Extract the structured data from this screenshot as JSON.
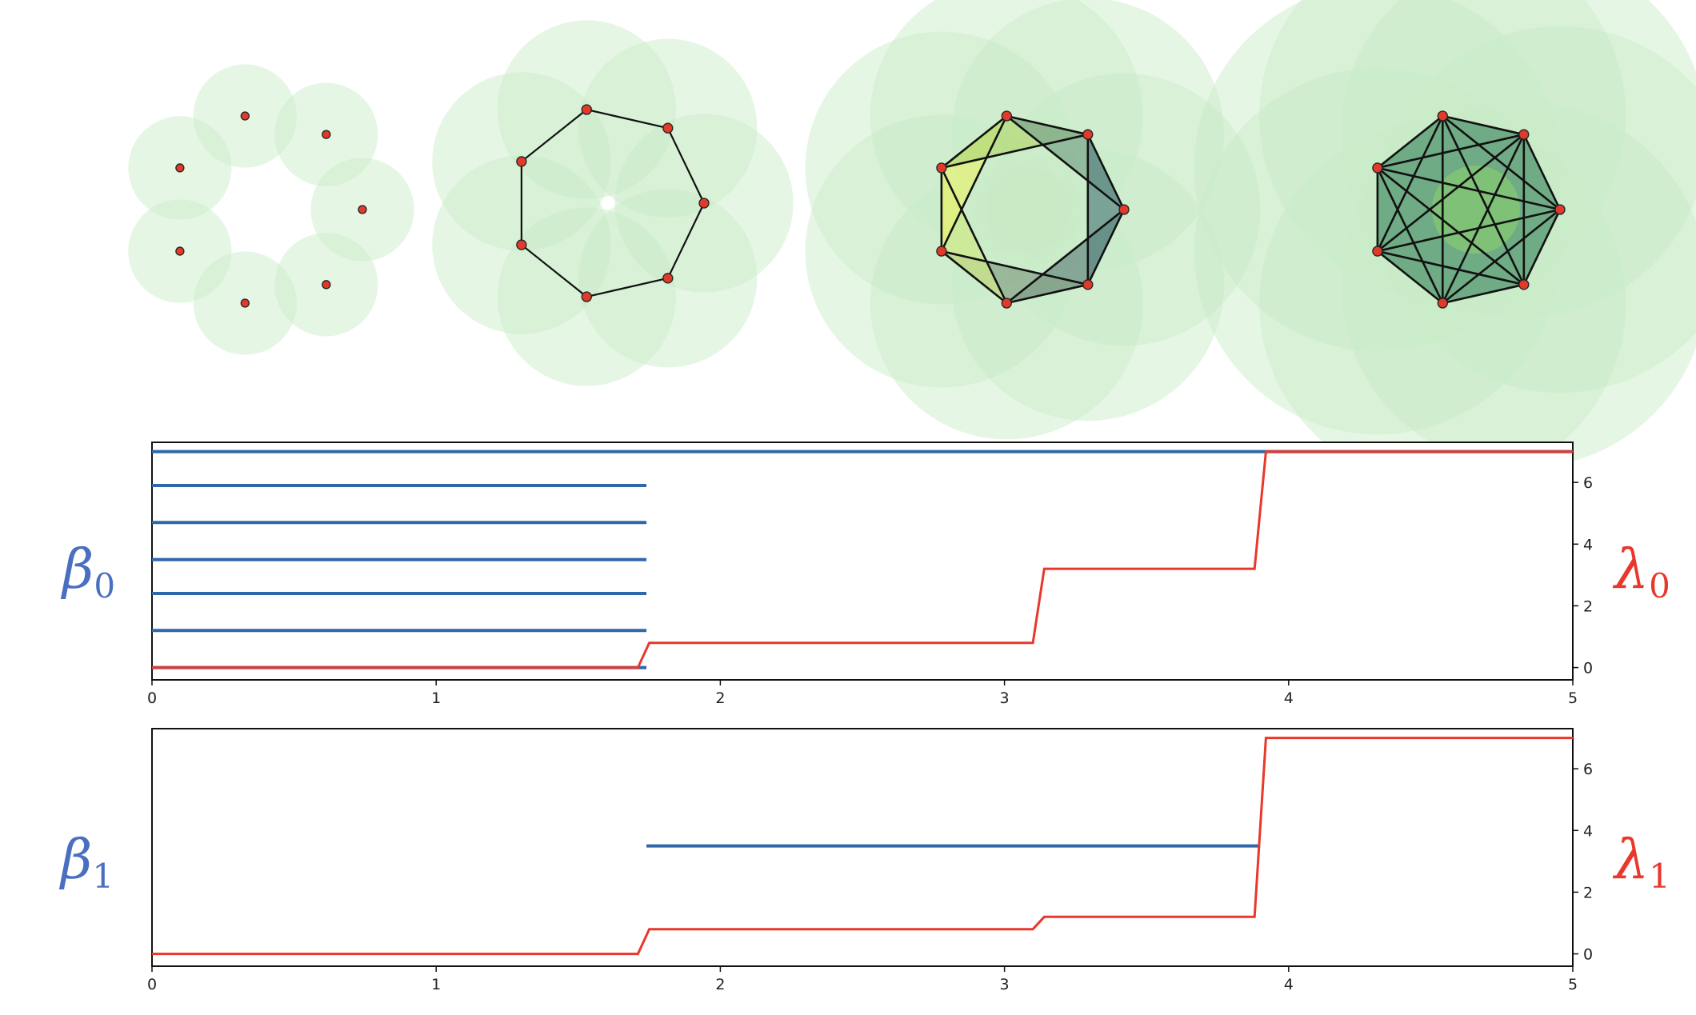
{
  "filtration": {
    "stages": [
      {
        "radius": 0.55
      },
      {
        "radius": 0.95
      },
      {
        "radius": 1.45
      },
      {
        "radius": 1.95
      }
    ],
    "colors": {
      "ball": "#c8ecc6",
      "vertex": "#e03a2a",
      "edge": "#111111"
    }
  },
  "labels": {
    "beta0": {
      "base": "β",
      "sub": "0",
      "color": "#4a6fc1"
    },
    "lambda0": {
      "base": "λ",
      "sub": "0",
      "color": "#e8382b"
    },
    "beta1": {
      "base": "β",
      "sub": "1",
      "color": "#4a6fc1"
    },
    "lambda1": {
      "base": "λ",
      "sub": "1",
      "color": "#e8382b"
    }
  },
  "chart_data": [
    {
      "type": "line",
      "xlim": [
        0,
        5
      ],
      "xticks": [
        "0",
        "1",
        "2",
        "3",
        "4",
        "5"
      ],
      "ylim_right": [
        -0.4,
        7.3
      ],
      "yticks_right": [
        "0",
        "2",
        "4",
        "6"
      ],
      "barcode": {
        "color": "#2f68a8",
        "levels": [
          0,
          1.2,
          2.4,
          3.5,
          4.7,
          5.9,
          7.0
        ],
        "bars": [
          {
            "start": 0,
            "end": 1.74
          },
          {
            "start": 0,
            "end": 1.74
          },
          {
            "start": 0,
            "end": 1.74
          },
          {
            "start": 0,
            "end": 1.74
          },
          {
            "start": 0,
            "end": 1.74
          },
          {
            "start": 0,
            "end": 1.74
          },
          {
            "start": 0,
            "end": 5
          }
        ]
      },
      "curve": {
        "color": "#e8382b",
        "points": [
          [
            0,
            0
          ],
          [
            1.71,
            0
          ],
          [
            1.75,
            0.8
          ],
          [
            3.1,
            0.8
          ],
          [
            3.14,
            3.2
          ],
          [
            3.88,
            3.2
          ],
          [
            3.92,
            7.0
          ],
          [
            5,
            7.0
          ]
        ]
      }
    },
    {
      "type": "line",
      "xlim": [
        0,
        5
      ],
      "xticks": [
        "0",
        "1",
        "2",
        "3",
        "4",
        "5"
      ],
      "ylim_right": [
        -0.4,
        7.3
      ],
      "yticks_right": [
        "0",
        "2",
        "4",
        "6"
      ],
      "barcode": {
        "color": "#2f68a8",
        "levels": [
          3.5
        ],
        "bars": [
          {
            "start": 1.74,
            "end": 3.9
          }
        ]
      },
      "curve": {
        "color": "#e8382b",
        "points": [
          [
            0,
            0
          ],
          [
            1.71,
            0
          ],
          [
            1.75,
            0.8
          ],
          [
            3.1,
            0.8
          ],
          [
            3.14,
            1.2
          ],
          [
            3.88,
            1.2
          ],
          [
            3.92,
            7.0
          ],
          [
            5,
            7.0
          ]
        ]
      }
    }
  ]
}
